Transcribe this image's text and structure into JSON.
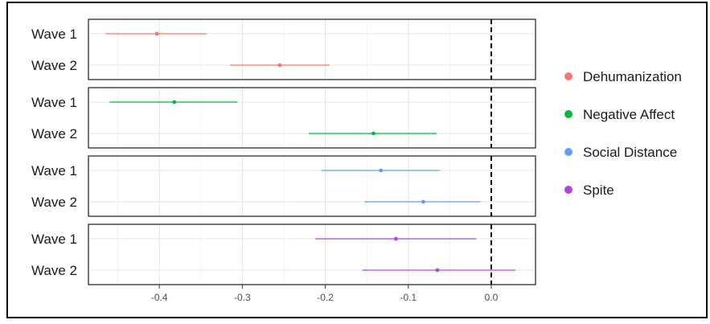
{
  "chart_data": {
    "type": "forest",
    "title": "",
    "xlabel": "",
    "ylabel": "",
    "xlim": [
      -0.48,
      0.055
    ],
    "x_ticks": [
      -0.4,
      -0.3,
      -0.2,
      -0.1,
      0.0
    ],
    "x_tick_labels": [
      "-0.4",
      "-0.3",
      "-0.2",
      "-0.1",
      "0.0"
    ],
    "reference_line": 0.0,
    "grid": true,
    "legend_position": "right",
    "row_labels": [
      "Wave 1",
      "Wave 2"
    ],
    "series": [
      {
        "name": "Dehumanization",
        "color": "#F8766D",
        "points": [
          {
            "label": "Wave 1",
            "estimate": -0.403,
            "low": -0.465,
            "high": -0.343
          },
          {
            "label": "Wave 2",
            "estimate": -0.255,
            "low": -0.315,
            "high": -0.195
          }
        ]
      },
      {
        "name": "Negative Affect",
        "color": "#00BA38",
        "points": [
          {
            "label": "Wave 1",
            "estimate": -0.382,
            "low": -0.46,
            "high": -0.306
          },
          {
            "label": "Wave 2",
            "estimate": -0.142,
            "low": -0.22,
            "high": -0.066
          }
        ]
      },
      {
        "name": "Social Distance",
        "color": "#619CFF",
        "points": [
          {
            "label": "Wave 1",
            "estimate": -0.133,
            "low": -0.205,
            "high": -0.062
          },
          {
            "label": "Wave 2",
            "estimate": -0.082,
            "low": -0.153,
            "high": -0.013
          }
        ]
      },
      {
        "name": "Spite",
        "color": "#B143E8",
        "points": [
          {
            "label": "Wave 1",
            "estimate": -0.115,
            "low": -0.212,
            "high": -0.018
          },
          {
            "label": "Wave 2",
            "estimate": -0.065,
            "low": -0.155,
            "high": 0.029
          }
        ]
      }
    ]
  }
}
